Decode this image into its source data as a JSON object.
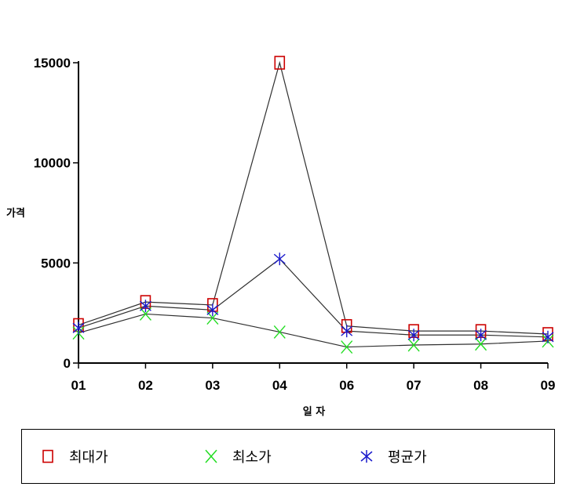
{
  "chart_data": {
    "type": "line",
    "categories": [
      "01",
      "02",
      "03",
      "04",
      "06",
      "07",
      "08",
      "09"
    ],
    "series": [
      {
        "name": "최대가",
        "values": [
          1900,
          3050,
          2900,
          15000,
          1850,
          1600,
          1600,
          1450
        ],
        "marker": "square",
        "color": "#cc0000"
      },
      {
        "name": "최소가",
        "values": [
          1500,
          2450,
          2250,
          1550,
          800,
          900,
          950,
          1100
        ],
        "marker": "x",
        "color": "#22dd22"
      },
      {
        "name": "평균가",
        "values": [
          1750,
          2850,
          2650,
          5200,
          1600,
          1400,
          1400,
          1300
        ],
        "marker": "asterisk",
        "color": "#1a1acc"
      }
    ],
    "yticks": [
      0,
      5000,
      10000,
      15000
    ],
    "ylim": [
      0,
      15000
    ],
    "xlabel": "일 자",
    "ylabel": "가격",
    "line_color": "#303030",
    "legend_position": "bottom",
    "grid": false
  }
}
